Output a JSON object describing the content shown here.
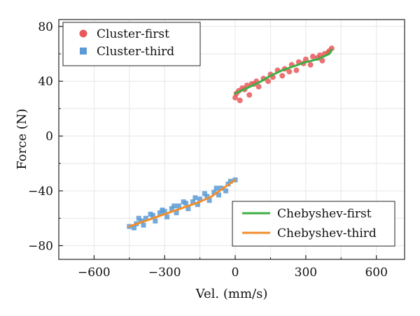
{
  "chart_data": {
    "type": "scatter",
    "title": "",
    "xlabel": "Vel. (mm/s)",
    "ylabel": "Force (N)",
    "xlim": [
      -750,
      720
    ],
    "ylim": [
      -90,
      85
    ],
    "xticks": [
      -600,
      -300,
      0,
      300,
      600
    ],
    "xtick_labels": [
      "−600",
      "−300",
      "0",
      "300",
      "600"
    ],
    "yticks": [
      -80,
      -40,
      0,
      40,
      80
    ],
    "ytick_labels": [
      "−80",
      "−40",
      "0",
      "40",
      "80"
    ],
    "grid": true,
    "series": [
      {
        "name": "Cluster-first",
        "kind": "scatter",
        "marker": "circle",
        "color": "#e8585a",
        "x": [
          0,
          5,
          15,
          30,
          50,
          70,
          90,
          120,
          150,
          180,
          210,
          240,
          270,
          300,
          330,
          360,
          380,
          400,
          410,
          20,
          60,
          100,
          140,
          200,
          260,
          320,
          370,
          40,
          80,
          160,
          230,
          290,
          350,
          395
        ],
        "y": [
          28,
          31,
          33,
          35,
          37,
          38,
          40,
          42,
          45,
          48,
          49,
          52,
          54,
          56,
          58,
          59,
          60,
          62,
          64,
          26,
          30,
          36,
          40,
          44,
          48,
          52,
          55,
          34,
          38,
          43,
          47,
          53,
          57,
          61
        ]
      },
      {
        "name": "Cluster-third",
        "kind": "scatter",
        "marker": "square",
        "color": "#5b9bd5",
        "x": [
          -450,
          -420,
          -400,
          -380,
          -350,
          -320,
          -300,
          -270,
          -240,
          -210,
          -180,
          -150,
          -120,
          -90,
          -60,
          -30,
          0,
          -430,
          -390,
          -340,
          -290,
          -250,
          -200,
          -160,
          -110,
          -70,
          -40,
          -410,
          -360,
          -310,
          -260,
          -220,
          -170,
          -130,
          -80,
          -20
        ],
        "y": [
          -66,
          -64,
          -62,
          -60,
          -58,
          -56,
          -55,
          -53,
          -51,
          -49,
          -48,
          -46,
          -44,
          -41,
          -38,
          -35,
          -32,
          -67,
          -65,
          -62,
          -59,
          -56,
          -53,
          -50,
          -47,
          -43,
          -40,
          -60,
          -57,
          -54,
          -51,
          -48,
          -45,
          -42,
          -38,
          -33
        ]
      },
      {
        "name": "Chebyshev-first",
        "kind": "line",
        "color": "#3cb043",
        "x": [
          0,
          50,
          100,
          150,
          200,
          250,
          300,
          350,
          400,
          410
        ],
        "y": [
          31,
          35,
          39,
          44,
          48,
          51,
          54,
          56,
          60,
          63
        ]
      },
      {
        "name": "Chebyshev-third",
        "kind": "line",
        "color": "#f28e2b",
        "x": [
          -450,
          -400,
          -350,
          -300,
          -250,
          -200,
          -150,
          -100,
          -50,
          0
        ],
        "y": [
          -66,
          -63,
          -60,
          -57,
          -54,
          -51,
          -48,
          -44,
          -38,
          -32
        ]
      }
    ],
    "legends": [
      {
        "placement": "top-left",
        "entries": [
          "Cluster-first",
          "Cluster-third"
        ]
      },
      {
        "placement": "bottom-right",
        "entries": [
          "Chebyshev-first",
          "Chebyshev-third"
        ]
      }
    ]
  }
}
